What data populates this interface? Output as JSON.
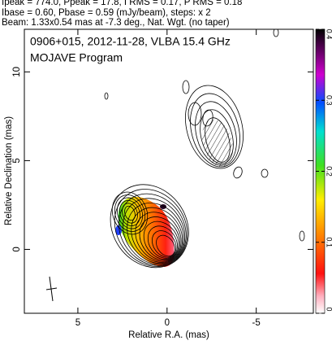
{
  "chart_data": {
    "type": "contour",
    "header_lines": [
      "Ipeak = 774.0, Ppeak = 17.8, I RMS = 0.17, P RMS = 0.18",
      "Ibase = 0.60, Pbase = 0.59 (mJy/beam), steps: x 2",
      "Beam: 1.33x0.54 mas at -7.3 deg., Nat. Wgt. (no taper)"
    ],
    "title": "0906+015, 2012-11-28, VLBA 15.4 GHz",
    "subtitle": "MOJAVE Program",
    "x_label": "Relative R.A. (mas)",
    "y_label": "Relative Declination (mas)",
    "xlim": [
      8,
      -8.2
    ],
    "xticks": [
      5,
      0,
      -5
    ],
    "ylim": [
      -3.6,
      12.4
    ],
    "yticks": [
      0,
      5,
      10
    ],
    "colorbar": {
      "lim": [
        0,
        0.4
      ],
      "ticks": [
        0,
        0.1,
        0.2,
        0.3,
        0.4
      ]
    }
  }
}
